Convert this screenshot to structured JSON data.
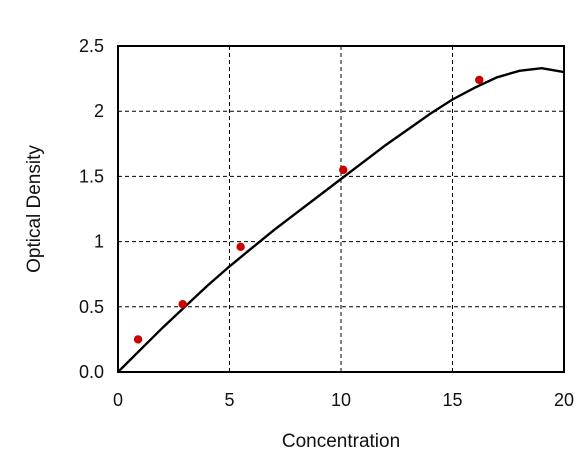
{
  "chart_data": {
    "type": "scatter",
    "title": "",
    "xlabel": "Concentration",
    "ylabel": "Optical Density",
    "xlim": [
      0,
      20
    ],
    "ylim": [
      0,
      2.5
    ],
    "x_ticks": [
      0,
      5,
      10,
      15,
      20
    ],
    "x_tick_labels": [
      "0",
      "5",
      "10",
      "15",
      "20"
    ],
    "y_ticks": [
      0,
      0.5,
      1,
      1.5,
      2,
      2.5
    ],
    "y_tick_labels": [
      "0.0",
      "0.5",
      "1",
      "1.5",
      "2",
      "2.5"
    ],
    "grid": true,
    "points": {
      "x": [
        0.9,
        2.9,
        5.5,
        10.1,
        16.2
      ],
      "y": [
        0.25,
        0.52,
        0.96,
        1.55,
        2.24
      ],
      "color": "#cc0000"
    },
    "fit_curve": {
      "x": [
        0,
        1,
        2,
        3,
        4,
        5,
        6,
        7,
        8,
        9,
        10,
        11,
        12,
        13,
        14,
        15,
        16,
        17,
        18,
        19,
        20
      ],
      "y": [
        0.0,
        0.17,
        0.34,
        0.5,
        0.66,
        0.81,
        0.95,
        1.09,
        1.22,
        1.35,
        1.48,
        1.61,
        1.74,
        1.86,
        1.98,
        2.09,
        2.18,
        2.26,
        2.31,
        2.33,
        2.3
      ],
      "color": "#000000"
    }
  }
}
